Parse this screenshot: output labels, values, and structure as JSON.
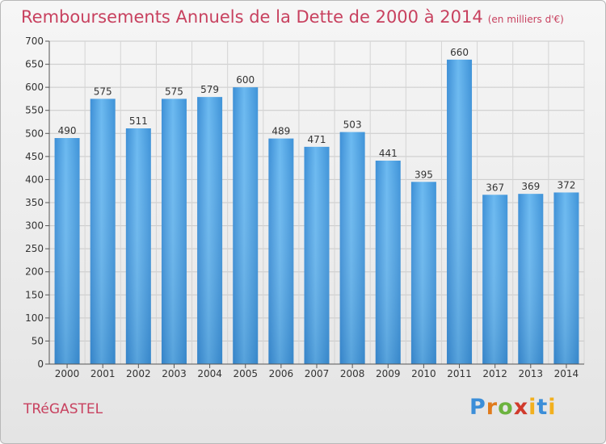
{
  "header": {
    "title": "Remboursements Annuels de la Dette de 2000 à 2014",
    "subtitle": "(en milliers d'€)"
  },
  "footer": {
    "commune": "TRéGASTEL",
    "logo": "Proxiti"
  },
  "colors": {
    "title": "#c8415f",
    "bar": "#4a9fe0",
    "bar_light": "#6ab8f0",
    "bar_dark": "#2f7fc4",
    "grid": "#c8c8c8",
    "background": "#ececec"
  },
  "chart_data": {
    "type": "bar",
    "title": "Remboursements Annuels de la Dette de 2000 à 2014",
    "subtitle": "(en milliers d'€)",
    "categories": [
      "2000",
      "2001",
      "2002",
      "2003",
      "2004",
      "2005",
      "2006",
      "2007",
      "2008",
      "2009",
      "2010",
      "2011",
      "2012",
      "2013",
      "2014"
    ],
    "values": [
      490,
      575,
      511,
      575,
      579,
      600,
      489,
      471,
      503,
      441,
      395,
      660,
      367,
      369,
      372
    ],
    "ylim": [
      0,
      700
    ],
    "yticks": [
      0,
      50,
      100,
      150,
      200,
      250,
      300,
      350,
      400,
      450,
      500,
      550,
      600,
      650,
      700
    ],
    "grid": true,
    "legend": "none"
  }
}
